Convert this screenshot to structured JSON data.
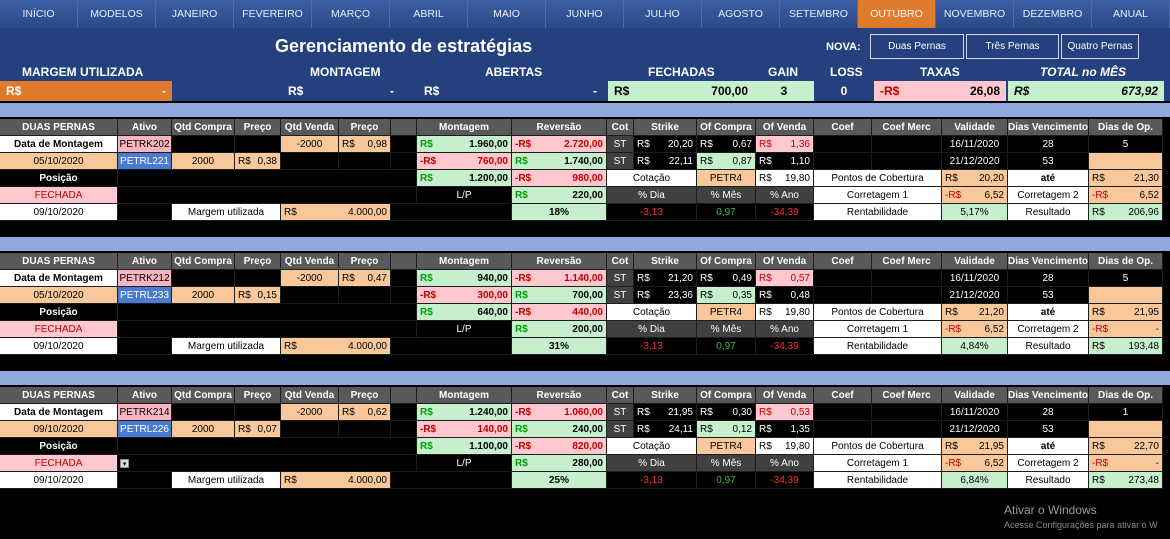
{
  "nav": [
    "INÍCIO",
    "MODELOS",
    "JANEIRO",
    "FEVEREIRO",
    "MARÇO",
    "ABRIL",
    "MAIO",
    "JUNHO",
    "JULHO",
    "AGOSTO",
    "SETEMBRO",
    "OUTUBRO",
    "NOVEMBRO",
    "DEZEMBRO",
    "ANUAL"
  ],
  "nav_active": "OUTUBRO",
  "title": "Gerenciamento de estratégias",
  "nova_label": "NOVA:",
  "nova_buttons": [
    "Duas Pernas",
    "Três Pernas",
    "Quatro Pernas"
  ],
  "summary": {
    "headers": {
      "margem": "MARGEM UTILIZADA",
      "montagem": "MONTAGEM",
      "abertas": "ABERTAS",
      "fechadas": "FECHADAS",
      "gain": "GAIN",
      "loss": "LOSS",
      "taxas": "TAXAS",
      "total": "TOTAL no MÊS"
    },
    "currency": "R$",
    "neg_currency": "-R$",
    "dash": "-",
    "fechadas": "700,00",
    "gain": "3",
    "loss": "0",
    "taxas": "26,08",
    "total": "673,92"
  },
  "colh": {
    "duas": "DUAS PERNAS",
    "ativo": "Ativo",
    "qtdc": "Qtd Compra",
    "preco": "Preço",
    "qtdv": "Qtd Venda",
    "montagem": "Montagem",
    "reversao": "Reversão",
    "cot": "Cot",
    "strike": "Strike",
    "ofc": "Of Compra",
    "ofv": "Of Venda",
    "coef": "Coef",
    "coefm": "Coef Merc",
    "validade": "Validade",
    "diasv": "Dias Vencimento",
    "diaso": "Dias de Op."
  },
  "labels": {
    "data_montagem": "Data de Montagem",
    "posicao": "Posição",
    "margem": "Margem utilizada",
    "lp": "L/P",
    "cotacao": "Cotação",
    "pdia": "% Dia",
    "pmes": "% Mês",
    "pano": "% Ano",
    "pontos": "Pontos de Cobertura",
    "ate": "até",
    "corr1": "Corretagem 1",
    "corr2": "Corretagem 2",
    "rent": "Rentabilidade",
    "resultado": "Resultado",
    "st": "ST",
    "rs": "R$",
    "nrs": "-R$",
    "dash": "-"
  },
  "blocks": [
    {
      "ativo1": "PETRK202",
      "ativo2": "PETRL221",
      "qtdv": "-2000",
      "preco1": "0,98",
      "data": "05/10/2020",
      "qtdc": "2000",
      "preco2": "0,38",
      "status": "FECHADA",
      "date2": "09/10/2020",
      "margem": "4.000,00",
      "mont1": "1.960,00",
      "rev1": "2.720,00",
      "mont2": "760,00",
      "rev2": "1.740,00",
      "mont3": "1.200,00",
      "rev3": "980,00",
      "lp": "220,00",
      "pct": "18%",
      "strike1": "20,20",
      "ofc1": "0,67",
      "ofv1": "1,36",
      "strike2": "22,11",
      "ofc2": "0,87",
      "ofv2": "1,10",
      "cot_code": "PETR4",
      "cot_val": "19,80",
      "pdia": "-3,13",
      "pmes": "0,97",
      "pano": "-34,39",
      "val1": "16/11/2020",
      "val2": "21/12/2020",
      "dias1": "28",
      "dias2": "53",
      "diaso": "5",
      "pc1": "20,20",
      "pc2": "21,30",
      "corr1": "6,52",
      "corr2": "6,52",
      "rent": "5,17%",
      "result": "206,96"
    },
    {
      "ativo1": "PETRK212",
      "ativo2": "PETRL233",
      "qtdv": "-2000",
      "preco1": "0,47",
      "data": "05/10/2020",
      "qtdc": "2000",
      "preco2": "0,15",
      "status": "FECHADA",
      "date2": "09/10/2020",
      "margem": "4.000,00",
      "mont1": "940,00",
      "rev1": "1.140,00",
      "mont2": "300,00",
      "rev2": "700,00",
      "mont3": "640,00",
      "rev3": "440,00",
      "lp": "200,00",
      "pct": "31%",
      "strike1": "21,20",
      "ofc1": "0,49",
      "ofv1": "0,57",
      "strike2": "23,36",
      "ofc2": "0,35",
      "ofv2": "0,48",
      "cot_code": "PETR4",
      "cot_val": "19,80",
      "pdia": "-3,13",
      "pmes": "0,97",
      "pano": "-34,39",
      "val1": "16/11/2020",
      "val2": "21/12/2020",
      "dias1": "28",
      "dias2": "53",
      "diaso": "5",
      "pc1": "21,20",
      "pc2": "21,95",
      "corr1": "6,52",
      "corr2": "-",
      "rent": "4,84%",
      "result": "193,48"
    },
    {
      "ativo1": "PETRK214",
      "ativo2": "PETRL226",
      "qtdv": "-2000",
      "preco1": "0,62",
      "data": "09/10/2020",
      "qtdc": "2000",
      "preco2": "0,07",
      "status": "FECHADA",
      "date2": "09/10/2020",
      "margem": "4.000,00",
      "mont1": "1.240,00",
      "rev1": "1.060,00",
      "mont2": "140,00",
      "rev2": "240,00",
      "mont3": "1.100,00",
      "rev3": "820,00",
      "lp": "280,00",
      "pct": "25%",
      "strike1": "21,95",
      "ofc1": "0,30",
      "ofv1": "0,53",
      "strike2": "24,11",
      "ofc2": "0,12",
      "ofv2": "1,35",
      "cot_code": "PETR4",
      "cot_val": "19,80",
      "pdia": "-3,13",
      "pmes": "0,97",
      "pano": "-34,39",
      "val1": "16/11/2020",
      "val2": "21/12/2020",
      "dias1": "28",
      "dias2": "53",
      "diaso": "1",
      "pc1": "21,95",
      "pc2": "22,70",
      "corr1": "6,52",
      "corr2": "-",
      "rent": "6,84%",
      "result": "273,48"
    }
  ],
  "windows": {
    "line1": "Ativar o Windows",
    "line2": "Acesse Configurações para ativar o W"
  }
}
